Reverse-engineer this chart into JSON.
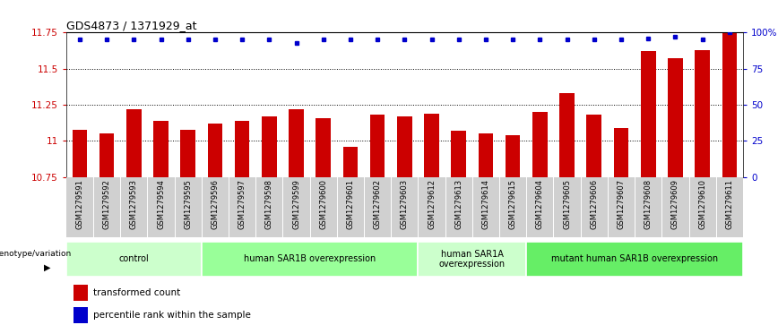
{
  "title": "GDS4873 / 1371929_at",
  "samples": [
    "GSM1279591",
    "GSM1279592",
    "GSM1279593",
    "GSM1279594",
    "GSM1279595",
    "GSM1279596",
    "GSM1279597",
    "GSM1279598",
    "GSM1279599",
    "GSM1279600",
    "GSM1279601",
    "GSM1279602",
    "GSM1279603",
    "GSM1279612",
    "GSM1279613",
    "GSM1279614",
    "GSM1279615",
    "GSM1279604",
    "GSM1279605",
    "GSM1279606",
    "GSM1279607",
    "GSM1279608",
    "GSM1279609",
    "GSM1279610",
    "GSM1279611"
  ],
  "bar_values": [
    11.08,
    11.05,
    11.22,
    11.14,
    11.08,
    11.12,
    11.14,
    11.17,
    11.22,
    11.16,
    10.96,
    11.18,
    11.17,
    11.19,
    11.07,
    11.05,
    11.04,
    11.2,
    11.33,
    11.18,
    11.09,
    11.62,
    11.57,
    11.63,
    11.75
  ],
  "percentile_values": [
    95,
    95,
    95,
    95,
    95,
    95,
    95,
    95,
    93,
    95,
    95,
    95,
    95,
    95,
    95,
    95,
    95,
    95,
    95,
    95,
    95,
    96,
    97,
    95,
    100
  ],
  "bar_color": "#cc0000",
  "dot_color": "#0000cc",
  "ymin": 10.75,
  "ymax": 11.75,
  "yticks": [
    10.75,
    11.0,
    11.25,
    11.5,
    11.75
  ],
  "ytick_labels": [
    "10.75",
    "11",
    "11.25",
    "11.5",
    "11.75"
  ],
  "right_yticks": [
    0,
    25,
    50,
    75,
    100
  ],
  "right_ytick_labels": [
    "0",
    "25",
    "50",
    "75",
    "100%"
  ],
  "gridlines": [
    11.0,
    11.25,
    11.5
  ],
  "groups": [
    {
      "label": "control",
      "start": 0,
      "end": 5,
      "color": "#ccffcc"
    },
    {
      "label": "human SAR1B overexpression",
      "start": 5,
      "end": 13,
      "color": "#99ff99"
    },
    {
      "label": "human SAR1A\noverexpression",
      "start": 13,
      "end": 17,
      "color": "#ccffcc"
    },
    {
      "label": "mutant human SAR1B overexpression",
      "start": 17,
      "end": 25,
      "color": "#66ee66"
    }
  ],
  "legend_label_bar": "transformed count",
  "legend_label_dot": "percentile rank within the sample",
  "genotype_label": "genotype/variation",
  "bg_label_color": "#cccccc",
  "label_area_color": "#d0d0d0"
}
